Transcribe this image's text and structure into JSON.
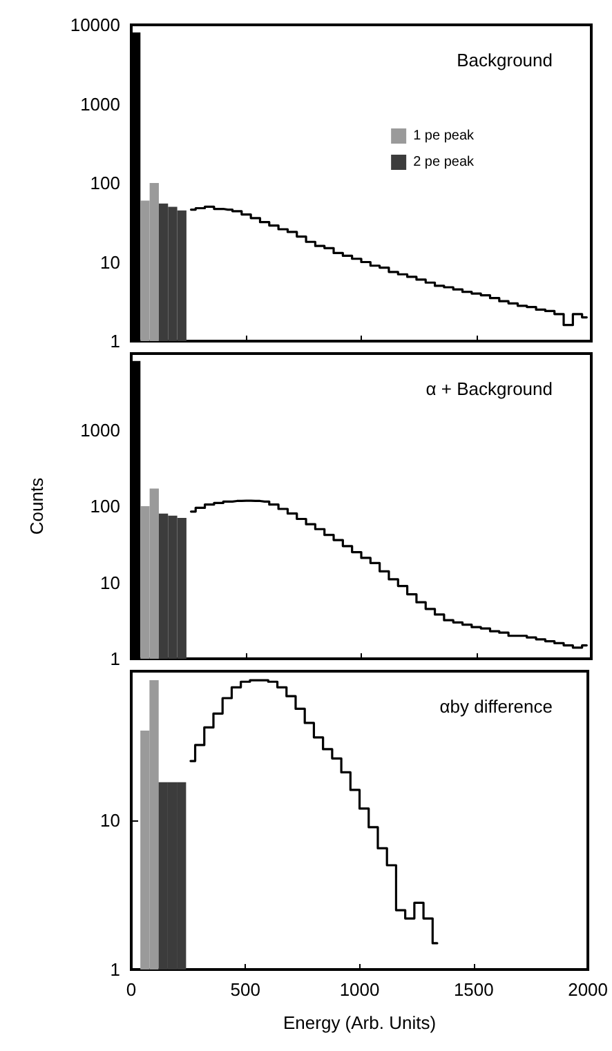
{
  "chart_data": [
    {
      "type": "bar",
      "title": "Background",
      "log": true,
      "xlim": [
        0,
        2000
      ],
      "xticks": [
        0,
        500,
        1000,
        1500,
        2000
      ],
      "ylim": [
        1,
        10000
      ],
      "yticks": [
        1,
        10,
        100,
        1000,
        10000
      ],
      "tick_labels": "y",
      "legend": "top right",
      "series": [
        {
          "type": "bar",
          "color": "#000000",
          "x": [
            20
          ],
          "values": [
            8000
          ]
        },
        {
          "name": "1 pe peak",
          "type": "bar",
          "color": "#9a9a9a",
          "x": [
            60,
            100
          ],
          "values": [
            60,
            100
          ]
        },
        {
          "name": "2 pe peak",
          "type": "bar",
          "color": "#3c3c3c",
          "x": [
            140,
            180,
            220
          ],
          "values": [
            55,
            50,
            45
          ]
        },
        {
          "type": "step",
          "color": "#000000",
          "x": [
            260,
            300,
            340,
            380,
            420,
            460,
            500,
            540,
            580,
            620,
            660,
            700,
            740,
            780,
            820,
            860,
            900,
            940,
            980,
            1020,
            1060,
            1100,
            1140,
            1180,
            1220,
            1260,
            1300,
            1340,
            1380,
            1420,
            1460,
            1500,
            1540,
            1580,
            1620,
            1660,
            1700,
            1740,
            1780,
            1820,
            1860,
            1900,
            1940,
            1980
          ],
          "values": [
            46,
            48,
            50,
            47,
            46,
            44,
            40,
            36,
            32,
            29,
            26,
            24,
            21,
            18,
            16,
            15,
            13,
            12,
            11,
            10,
            9,
            8.5,
            7.5,
            7,
            6.5,
            6,
            5.5,
            5,
            4.8,
            4.5,
            4.2,
            4,
            3.8,
            3.5,
            3.2,
            3,
            2.8,
            2.7,
            2.5,
            2.4,
            2.2,
            1.6,
            2.2,
            2
          ]
        }
      ]
    },
    {
      "type": "bar",
      "title": "α + Background",
      "ylabel": "Counts",
      "log": true,
      "xlim": [
        0,
        2000
      ],
      "xticks": [
        0,
        500,
        1000,
        1500,
        2000
      ],
      "ylim": [
        1,
        10000
      ],
      "yticks": [
        1,
        10,
        100,
        1000
      ],
      "tick_labels": "y",
      "series": [
        {
          "type": "bar",
          "color": "#000000",
          "x": [
            20
          ],
          "values": [
            8000
          ]
        },
        {
          "type": "bar",
          "color": "#9a9a9a",
          "x": [
            60,
            100
          ],
          "values": [
            100,
            170
          ]
        },
        {
          "type": "bar",
          "color": "#3c3c3c",
          "x": [
            140,
            180,
            220
          ],
          "values": [
            80,
            75,
            70
          ]
        },
        {
          "type": "step",
          "color": "#000000",
          "x": [
            260,
            300,
            340,
            380,
            420,
            460,
            500,
            540,
            580,
            620,
            660,
            700,
            740,
            780,
            820,
            860,
            900,
            940,
            980,
            1020,
            1060,
            1100,
            1140,
            1180,
            1220,
            1260,
            1300,
            1340,
            1380,
            1420,
            1460,
            1500,
            1540,
            1580,
            1620,
            1660,
            1700,
            1740,
            1780,
            1820,
            1860,
            1900,
            1940,
            1980
          ],
          "values": [
            85,
            95,
            105,
            110,
            115,
            117,
            118,
            117,
            115,
            105,
            92,
            80,
            68,
            58,
            50,
            42,
            36,
            30,
            25,
            21,
            18,
            14,
            11,
            9,
            7,
            5.5,
            4.5,
            3.8,
            3.2,
            3,
            2.8,
            2.6,
            2.5,
            2.3,
            2.2,
            2,
            2,
            1.9,
            1.8,
            1.7,
            1.6,
            1.5,
            1.4,
            1.5
          ]
        }
      ]
    },
    {
      "type": "bar",
      "title": "αby difference",
      "xlabel": "Energy (Arb. Units)",
      "log": true,
      "xlim": [
        0,
        2000
      ],
      "xticks": [
        0,
        500,
        1000,
        1500,
        2000
      ],
      "ylim": [
        1,
        100
      ],
      "yticks": [
        1,
        10
      ],
      "series": [
        {
          "type": "bar",
          "color": "#9a9a9a",
          "x": [
            60,
            100
          ],
          "values": [
            40,
            87
          ]
        },
        {
          "type": "bar",
          "color": "#3c3c3c",
          "x": [
            140,
            180,
            220
          ],
          "values": [
            18,
            18,
            18
          ]
        },
        {
          "type": "step",
          "color": "#000000",
          "x": [
            260,
            300,
            340,
            380,
            420,
            460,
            500,
            540,
            580,
            620,
            660,
            700,
            740,
            780,
            820,
            860,
            900,
            940,
            980,
            1020,
            1060,
            1100,
            1140,
            1180,
            1220,
            1260,
            1300,
            1340
          ],
          "values": [
            25,
            32,
            42,
            52,
            66,
            78,
            85,
            87,
            87,
            85,
            78,
            68,
            56,
            45,
            36,
            30,
            26,
            21,
            16,
            12,
            9,
            6.5,
            5,
            2.5,
            2.2,
            2.8,
            2.2,
            1.5
          ]
        }
      ]
    }
  ]
}
